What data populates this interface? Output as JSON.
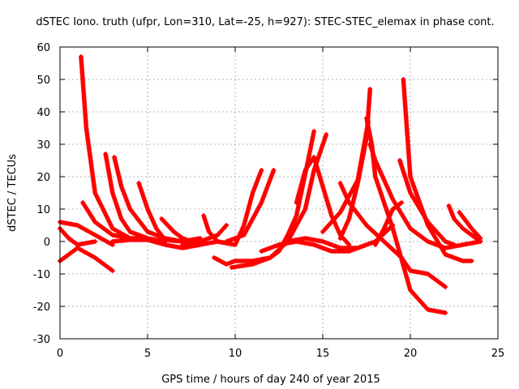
{
  "chart_data": {
    "type": "line",
    "title": "dSTEC Iono. truth (ufpr, Lon=310, Lat=-25, h=927): STEC-STEC_elemax in phase cont.",
    "xlabel": "GPS time / hours of day 240 of year 2015",
    "ylabel": "dSTEC  / TECUs",
    "xlim": [
      0,
      25
    ],
    "ylim": [
      -30,
      60
    ],
    "xticks": [
      0,
      5,
      10,
      15,
      20,
      25
    ],
    "yticks": [
      -30,
      -20,
      -10,
      0,
      10,
      20,
      30,
      40,
      50,
      60
    ],
    "grid": true,
    "marker": "+",
    "series_color": "#ff0000",
    "series": [
      {
        "points": [
          [
            0,
            -6
          ],
          [
            1,
            -2
          ],
          [
            2,
            -5
          ],
          [
            3,
            -9
          ]
        ]
      },
      {
        "points": [
          [
            0,
            6
          ],
          [
            1,
            5
          ],
          [
            2,
            2
          ],
          [
            3,
            -1
          ]
        ]
      },
      {
        "points": [
          [
            0,
            4
          ],
          [
            0.5,
            1
          ],
          [
            1,
            -1
          ],
          [
            2,
            0
          ]
        ]
      },
      {
        "points": [
          [
            1.2,
            57
          ],
          [
            1.5,
            35
          ],
          [
            2,
            15
          ],
          [
            3,
            4
          ],
          [
            4,
            1
          ],
          [
            5,
            0.5
          ]
        ]
      },
      {
        "points": [
          [
            1.3,
            12
          ],
          [
            2,
            6
          ],
          [
            3,
            2
          ],
          [
            4,
            1
          ],
          [
            5,
            1
          ]
        ]
      },
      {
        "points": [
          [
            2.6,
            27
          ],
          [
            3,
            15
          ],
          [
            3.5,
            7
          ],
          [
            4,
            3
          ],
          [
            5,
            1
          ],
          [
            6,
            0
          ]
        ]
      },
      {
        "points": [
          [
            3.1,
            26
          ],
          [
            3.5,
            17
          ],
          [
            4,
            10
          ],
          [
            5,
            3
          ],
          [
            6,
            1
          ],
          [
            7,
            0
          ]
        ]
      },
      {
        "points": [
          [
            4.5,
            18
          ],
          [
            5,
            10
          ],
          [
            5.5,
            4
          ],
          [
            6,
            0.5
          ],
          [
            7,
            0
          ],
          [
            8,
            1
          ]
        ]
      },
      {
        "points": [
          [
            3,
            0
          ],
          [
            4,
            0.5
          ],
          [
            5,
            0.5
          ],
          [
            6,
            -1
          ],
          [
            7,
            -2
          ],
          [
            8,
            -1
          ],
          [
            9,
            0
          ],
          [
            10,
            -1
          ]
        ]
      },
      {
        "points": [
          [
            5.8,
            7
          ],
          [
            6.5,
            3
          ],
          [
            7,
            1
          ],
          [
            7.5,
            0
          ]
        ]
      },
      {
        "points": [
          [
            8.2,
            8
          ],
          [
            8.5,
            3
          ],
          [
            9,
            0
          ]
        ]
      },
      {
        "points": [
          [
            7,
            -1
          ],
          [
            8,
            0
          ],
          [
            9,
            2
          ],
          [
            9.5,
            5
          ]
        ]
      },
      {
        "points": [
          [
            9,
            0
          ],
          [
            10,
            -1
          ],
          [
            10.5,
            5
          ],
          [
            11,
            15
          ],
          [
            11.5,
            22
          ]
        ]
      },
      {
        "points": [
          [
            9.5,
            0
          ],
          [
            10.5,
            2
          ],
          [
            11.5,
            12
          ],
          [
            12.2,
            22
          ]
        ]
      },
      {
        "points": [
          [
            8.8,
            -5
          ],
          [
            9.5,
            -7
          ],
          [
            10,
            -6
          ],
          [
            11,
            -6
          ],
          [
            12,
            -5
          ],
          [
            12.5,
            -3
          ],
          [
            13,
            2
          ],
          [
            13.5,
            8
          ],
          [
            14.2,
            26
          ],
          [
            14.5,
            34
          ]
        ]
      },
      {
        "points": [
          [
            9.8,
            -8
          ],
          [
            11,
            -7
          ],
          [
            12,
            -5
          ],
          [
            13,
            0
          ],
          [
            14,
            10
          ],
          [
            14.5,
            22
          ],
          [
            15.2,
            33
          ]
        ]
      },
      {
        "points": [
          [
            11.5,
            -3
          ],
          [
            12.5,
            -1
          ],
          [
            13.5,
            0
          ],
          [
            14.5,
            -1
          ],
          [
            15.5,
            -3
          ],
          [
            16.5,
            -3
          ],
          [
            17.5,
            -1
          ]
        ]
      },
      {
        "points": [
          [
            13,
            0
          ],
          [
            14,
            1
          ],
          [
            15,
            0
          ],
          [
            16,
            -2
          ],
          [
            17,
            -2
          ],
          [
            18,
            0
          ],
          [
            19,
            5
          ]
        ]
      },
      {
        "points": [
          [
            13.5,
            12
          ],
          [
            14,
            22
          ],
          [
            14.5,
            26
          ],
          [
            15,
            17
          ],
          [
            15.5,
            8
          ],
          [
            16,
            2
          ],
          [
            16.5,
            -1
          ]
        ]
      },
      {
        "points": [
          [
            15,
            3
          ],
          [
            16,
            9
          ],
          [
            17,
            19
          ],
          [
            17.6,
            37
          ]
        ]
      },
      {
        "points": [
          [
            16,
            1
          ],
          [
            16.5,
            7
          ],
          [
            17,
            18
          ],
          [
            17.5,
            32
          ],
          [
            17.7,
            47
          ]
        ]
      },
      {
        "points": [
          [
            16,
            18
          ],
          [
            16.5,
            12
          ],
          [
            17.5,
            5
          ],
          [
            18.5,
            0
          ],
          [
            19.5,
            -5
          ],
          [
            20,
            -9
          ],
          [
            21,
            -10
          ],
          [
            22,
            -14
          ]
        ]
      },
      {
        "points": [
          [
            17.5,
            38
          ],
          [
            17.8,
            30
          ],
          [
            18,
            20
          ],
          [
            19,
            4
          ],
          [
            20,
            -15
          ],
          [
            21,
            -21
          ],
          [
            22,
            -22
          ]
        ]
      },
      {
        "points": [
          [
            17.7,
            30
          ],
          [
            18,
            25
          ],
          [
            19,
            13
          ],
          [
            20,
            4
          ],
          [
            21,
            0
          ],
          [
            22,
            -2
          ]
        ]
      },
      {
        "points": [
          [
            18,
            -1
          ],
          [
            18.5,
            4
          ],
          [
            19,
            10
          ],
          [
            19.5,
            12
          ]
        ]
      },
      {
        "points": [
          [
            19.4,
            25
          ],
          [
            20,
            15
          ],
          [
            21,
            6
          ],
          [
            22,
            0
          ],
          [
            22.5,
            -1
          ]
        ]
      },
      {
        "points": [
          [
            19.6,
            50
          ],
          [
            20,
            20
          ],
          [
            21,
            5
          ],
          [
            22,
            -4
          ],
          [
            23,
            -6
          ],
          [
            23.5,
            -6
          ]
        ]
      },
      {
        "points": [
          [
            22.2,
            11
          ],
          [
            22.5,
            7
          ],
          [
            23,
            4
          ],
          [
            24,
            0
          ]
        ]
      },
      {
        "points": [
          [
            22.8,
            9
          ],
          [
            23.5,
            4
          ],
          [
            24,
            1
          ]
        ]
      },
      {
        "points": [
          [
            22,
            -2
          ],
          [
            23,
            -1
          ],
          [
            24,
            0
          ]
        ]
      }
    ]
  }
}
